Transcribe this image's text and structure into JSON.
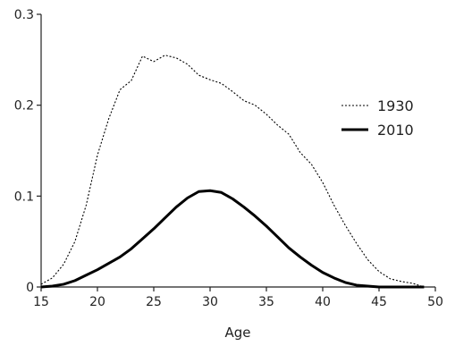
{
  "chart_data": {
    "type": "line",
    "title": "",
    "xlabel": "Age",
    "ylabel": "",
    "xlim": [
      15,
      50
    ],
    "ylim": [
      0,
      0.3
    ],
    "x_ticks": [
      "15",
      "20",
      "25",
      "30",
      "35",
      "40",
      "45",
      "50"
    ],
    "y_ticks": [
      "0",
      "0.1",
      "0.2",
      "0.3"
    ],
    "grid": false,
    "legend_position": "right",
    "series": [
      {
        "name": "1930",
        "style": "dotted",
        "color": "#000000",
        "x": [
          15,
          16,
          17,
          18,
          19,
          20,
          21,
          22,
          23,
          24,
          25,
          26,
          27,
          28,
          29,
          30,
          31,
          32,
          33,
          34,
          35,
          36,
          37,
          38,
          39,
          40,
          41,
          42,
          43,
          44,
          45,
          46,
          47,
          48,
          49
        ],
        "y": [
          0.003,
          0.01,
          0.025,
          0.05,
          0.09,
          0.145,
          0.185,
          0.217,
          0.227,
          0.254,
          0.248,
          0.255,
          0.252,
          0.245,
          0.233,
          0.228,
          0.224,
          0.215,
          0.205,
          0.2,
          0.19,
          0.178,
          0.168,
          0.148,
          0.135,
          0.115,
          0.09,
          0.068,
          0.048,
          0.03,
          0.017,
          0.009,
          0.006,
          0.004,
          0.0
        ]
      },
      {
        "name": "2010",
        "style": "solid",
        "color": "#000000",
        "x": [
          15,
          16,
          17,
          18,
          19,
          20,
          21,
          22,
          23,
          24,
          25,
          26,
          27,
          28,
          29,
          30,
          31,
          32,
          33,
          34,
          35,
          36,
          37,
          38,
          39,
          40,
          41,
          42,
          43,
          44,
          45,
          46,
          47,
          48,
          49
        ],
        "y": [
          0.0,
          0.001,
          0.003,
          0.007,
          0.013,
          0.019,
          0.026,
          0.033,
          0.042,
          0.053,
          0.064,
          0.076,
          0.088,
          0.098,
          0.105,
          0.106,
          0.104,
          0.097,
          0.088,
          0.078,
          0.067,
          0.055,
          0.043,
          0.033,
          0.024,
          0.016,
          0.01,
          0.005,
          0.002,
          0.001,
          0.0,
          0.0,
          0.0,
          0.0,
          0.0
        ]
      }
    ]
  }
}
